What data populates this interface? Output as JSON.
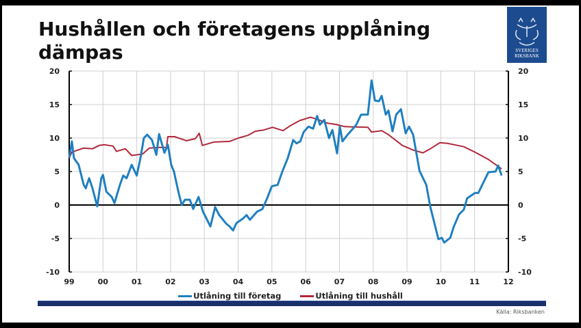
{
  "title": "Hushållen och företagens upplåning dämpas",
  "logo": {
    "text": "SVERIGES RIKSBANK",
    "color": "#1d4b8f"
  },
  "source": "Källa: Riksbanken",
  "chart_data": {
    "type": "line",
    "title": "",
    "xlabel": "",
    "ylabel": "",
    "xlim": [
      1999,
      2012
    ],
    "ylim": [
      -10,
      20
    ],
    "x_tick_labels": [
      "99",
      "00",
      "01",
      "02",
      "03",
      "04",
      "05",
      "06",
      "07",
      "08",
      "09",
      "10",
      "11",
      "12"
    ],
    "y_ticks": [
      -10,
      -5,
      0,
      5,
      10,
      15,
      20
    ],
    "y_ticks_right": [
      -10,
      -5,
      0,
      5,
      10,
      15,
      20
    ],
    "grid": true,
    "legend_position": "bottom",
    "series": [
      {
        "name": "Utlåning till företag",
        "color": "#1f7fc0",
        "x": [
          1999.0,
          1999.08,
          1999.14,
          1999.28,
          1999.43,
          1999.49,
          1999.59,
          1999.69,
          1999.83,
          1999.95,
          2000.0,
          2000.1,
          2000.26,
          2000.34,
          2000.5,
          2000.6,
          2000.7,
          2000.85,
          2001.0,
          2001.11,
          2001.21,
          2001.31,
          2001.45,
          2001.58,
          2001.66,
          2001.82,
          2001.92,
          2002.02,
          2002.1,
          2002.23,
          2002.33,
          2002.43,
          2002.57,
          2002.67,
          2002.83,
          2002.96,
          2003.04,
          2003.18,
          2003.32,
          2003.44,
          2003.65,
          2003.75,
          2003.85,
          2003.95,
          2004.15,
          2004.25,
          2004.35,
          2004.56,
          2004.72,
          2004.86,
          2005.0,
          2005.17,
          2005.31,
          2005.47,
          2005.63,
          2005.73,
          2005.84,
          2005.94,
          2006.08,
          2006.22,
          2006.34,
          2006.42,
          2006.55,
          2006.69,
          2006.79,
          2006.93,
          2007.01,
          2007.09,
          2007.24,
          2007.4,
          2007.5,
          2007.64,
          2007.84,
          2007.95,
          2008.05,
          2008.17,
          2008.25,
          2008.37,
          2008.45,
          2008.57,
          2008.68,
          2008.82,
          2008.96,
          2009.06,
          2009.18,
          2009.37,
          2009.57,
          2009.69,
          2009.93,
          2010.03,
          2010.1,
          2010.28,
          2010.38,
          2010.54,
          2010.68,
          2010.78,
          2011.01,
          2011.11,
          2011.41,
          2011.62,
          2011.7,
          2011.8
        ],
        "y": [
          7.0,
          9.5,
          7.0,
          6.0,
          3.0,
          2.5,
          4.0,
          2.5,
          -0.2,
          4.0,
          4.5,
          2.0,
          1.2,
          0.3,
          3.0,
          4.4,
          4.0,
          6.0,
          4.4,
          7.0,
          10.0,
          10.5,
          9.7,
          7.5,
          10.6,
          7.8,
          9.0,
          6.0,
          5.0,
          2.0,
          0.0,
          0.8,
          0.8,
          -0.6,
          1.2,
          -1.0,
          -1.8,
          -3.2,
          -0.3,
          -1.5,
          -2.8,
          -3.2,
          -3.8,
          -2.7,
          -2.0,
          -1.5,
          -2.2,
          -1.0,
          -0.6,
          1.0,
          2.8,
          3.0,
          5.0,
          7.0,
          9.7,
          9.2,
          9.5,
          10.9,
          11.7,
          11.4,
          13.3,
          12.0,
          12.7,
          10.0,
          11.2,
          7.7,
          11.7,
          9.5,
          10.5,
          11.4,
          12.0,
          13.5,
          13.5,
          18.6,
          15.6,
          15.5,
          16.3,
          13.5,
          14.1,
          11.0,
          13.5,
          14.3,
          10.7,
          11.7,
          10.5,
          5.1,
          3.0,
          -0.3,
          -5.1,
          -4.9,
          -5.6,
          -4.9,
          -3.3,
          -1.4,
          -0.7,
          1.0,
          1.8,
          1.8,
          4.9,
          5.0,
          5.9,
          4.4
        ]
      },
      {
        "name": "Utlåning till hushåll",
        "color": "#b0283a",
        "x": [
          1999.0,
          1999.08,
          1999.43,
          1999.69,
          1999.89,
          2000.05,
          2000.3,
          2000.4,
          2000.66,
          2000.85,
          2001.17,
          2001.37,
          2001.66,
          2001.88,
          2001.92,
          2002.12,
          2002.47,
          2002.73,
          2002.85,
          2002.94,
          2003.28,
          2003.75,
          2004.01,
          2004.29,
          2004.5,
          2004.76,
          2005.02,
          2005.33,
          2005.53,
          2005.82,
          2006.14,
          2006.34,
          2006.65,
          2006.93,
          2007.15,
          2007.84,
          2007.95,
          2008.25,
          2008.45,
          2008.86,
          2009.18,
          2009.47,
          2009.69,
          2009.97,
          2010.2,
          2010.68,
          2011.01,
          2011.41,
          2011.8
        ],
        "y": [
          7.0,
          7.9,
          8.5,
          8.4,
          8.9,
          9.0,
          8.8,
          8.0,
          8.4,
          7.4,
          7.6,
          8.5,
          8.6,
          8.6,
          10.2,
          10.2,
          9.6,
          9.9,
          10.7,
          8.9,
          9.4,
          9.5,
          10.0,
          10.4,
          11.0,
          11.2,
          11.6,
          11.1,
          11.8,
          12.6,
          13.1,
          12.8,
          12.2,
          12.0,
          11.7,
          11.6,
          10.9,
          11.1,
          10.5,
          8.9,
          8.2,
          7.8,
          8.4,
          9.3,
          9.2,
          8.7,
          7.9,
          6.8,
          5.4
        ]
      }
    ]
  }
}
